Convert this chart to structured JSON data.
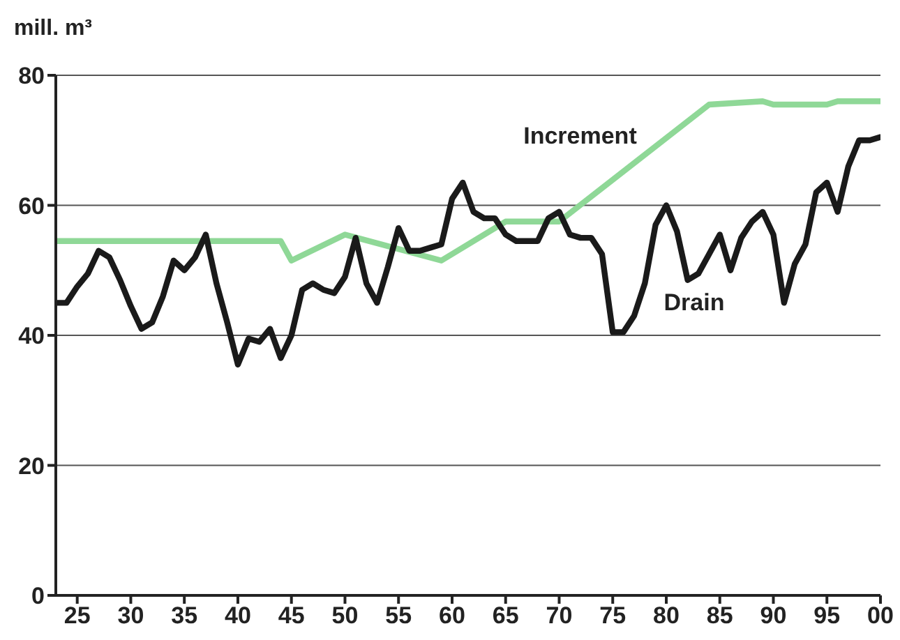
{
  "chart_data": {
    "type": "line",
    "ylabel": "mill. m³",
    "xlim": [
      1923,
      2000
    ],
    "xticks": [
      {
        "value": 1925,
        "label": "25"
      },
      {
        "value": 1930,
        "label": "30"
      },
      {
        "value": 1935,
        "label": "35"
      },
      {
        "value": 1940,
        "label": "40"
      },
      {
        "value": 1945,
        "label": "45"
      },
      {
        "value": 1950,
        "label": "50"
      },
      {
        "value": 1955,
        "label": "55"
      },
      {
        "value": 1960,
        "label": "60"
      },
      {
        "value": 1965,
        "label": "65"
      },
      {
        "value": 1970,
        "label": "70"
      },
      {
        "value": 1975,
        "label": "75"
      },
      {
        "value": 1980,
        "label": "80"
      },
      {
        "value": 1985,
        "label": "85"
      },
      {
        "value": 1990,
        "label": "90"
      },
      {
        "value": 1995,
        "label": "95"
      },
      {
        "value": 2000,
        "label": "00"
      }
    ],
    "ylim": [
      0,
      80
    ],
    "yticks": [
      0,
      20,
      40,
      60,
      80
    ],
    "grid": "y",
    "legend": false,
    "marker": "none",
    "line_style": "solid",
    "series": [
      {
        "name": "Increment",
        "color": "#8fd897",
        "x": [
          1923,
          1944,
          1945,
          1950,
          1959,
          1965,
          1970,
          1984,
          1989,
          1990,
          1995,
          1996,
          2000
        ],
        "values": [
          54.5,
          54.5,
          51.5,
          55.5,
          51.5,
          57.5,
          57.5,
          75.5,
          76,
          75.5,
          75.5,
          76,
          76
        ]
      },
      {
        "name": "Drain",
        "color": "#1a1a1a",
        "x": [
          1923,
          1924,
          1925,
          1926,
          1927,
          1928,
          1929,
          1930,
          1931,
          1932,
          1933,
          1934,
          1935,
          1936,
          1937,
          1938,
          1939,
          1940,
          1941,
          1942,
          1943,
          1944,
          1945,
          1946,
          1947,
          1948,
          1949,
          1950,
          1951,
          1952,
          1953,
          1954,
          1955,
          1956,
          1957,
          1958,
          1959,
          1960,
          1961,
          1962,
          1963,
          1964,
          1965,
          1966,
          1967,
          1968,
          1969,
          1970,
          1971,
          1972,
          1973,
          1974,
          1975,
          1976,
          1977,
          1978,
          1979,
          1980,
          1981,
          1982,
          1983,
          1984,
          1985,
          1986,
          1987,
          1988,
          1989,
          1990,
          1991,
          1992,
          1993,
          1994,
          1995,
          1996,
          1997,
          1998,
          1999,
          2000
        ],
        "values": [
          45,
          45,
          47.5,
          49.5,
          53,
          52,
          48.5,
          44.5,
          41,
          42,
          46,
          51.5,
          50,
          52,
          55.5,
          48,
          42,
          35.5,
          39.5,
          39,
          41,
          36.5,
          40,
          47,
          48,
          47,
          46.5,
          49,
          55,
          48,
          45,
          50.5,
          56.5,
          53,
          53,
          53.5,
          54,
          61,
          63.5,
          59,
          58,
          58,
          55.5,
          54.5,
          54.5,
          54.5,
          58,
          59,
          55.5,
          55,
          55,
          52.5,
          40.5,
          40.5,
          43,
          48,
          57,
          60,
          56,
          48.5,
          49.5,
          52.5,
          55.5,
          50,
          55,
          57.5,
          59,
          55.5,
          45,
          51,
          54,
          62,
          63.5,
          59,
          66,
          70,
          70,
          70.5
        ]
      }
    ]
  }
}
